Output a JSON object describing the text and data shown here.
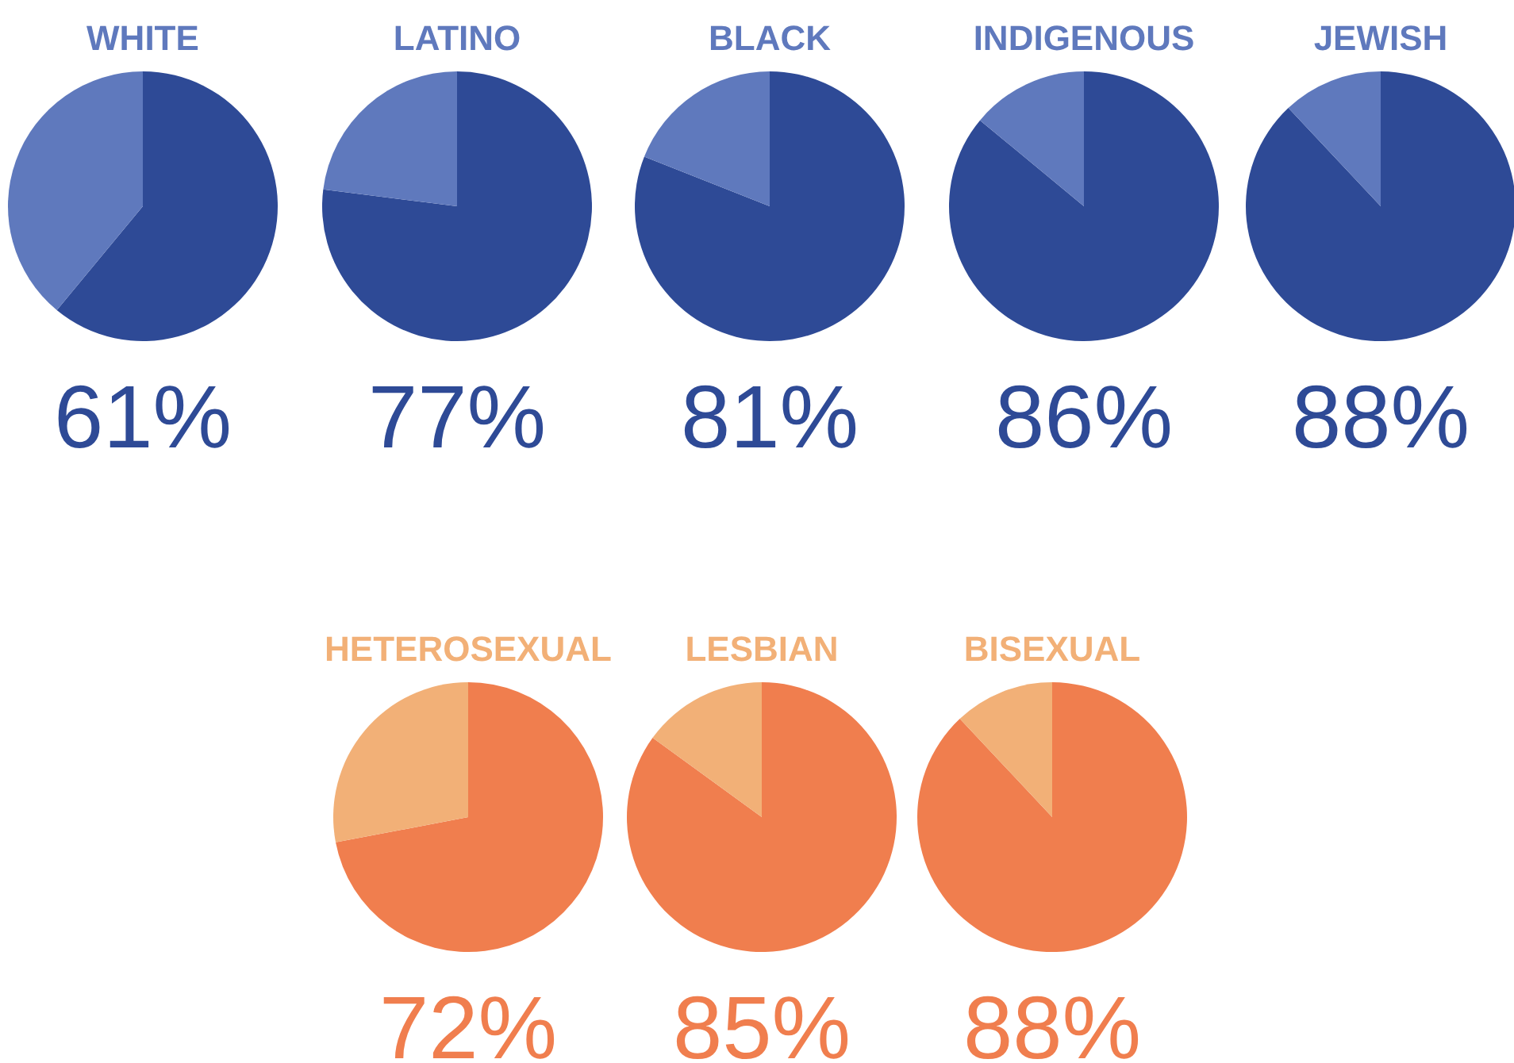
{
  "chart_data": [
    {
      "type": "pie",
      "title": "WHITE",
      "categories": [
        null,
        null
      ],
      "values": [
        61,
        39
      ],
      "colors": [
        "#2e4a96",
        "#5f79bd"
      ],
      "value_labels": [
        "61%",
        null
      ],
      "legend": false
    },
    {
      "type": "pie",
      "title": "LATINO",
      "categories": [
        null,
        null
      ],
      "values": [
        77,
        23
      ],
      "colors": [
        "#2e4a96",
        "#5f79bd"
      ],
      "value_labels": [
        "77%",
        null
      ],
      "legend": false
    },
    {
      "type": "pie",
      "title": "BLACK",
      "categories": [
        null,
        null
      ],
      "values": [
        81,
        19
      ],
      "colors": [
        "#2e4a96",
        "#5f79bd"
      ],
      "value_labels": [
        "81%",
        null
      ],
      "legend": false
    },
    {
      "type": "pie",
      "title": "INDIGENOUS",
      "categories": [
        null,
        null
      ],
      "values": [
        86,
        14
      ],
      "colors": [
        "#2e4a96",
        "#5f79bd"
      ],
      "value_labels": [
        "86%",
        null
      ],
      "legend": false
    },
    {
      "type": "pie",
      "title": "JEWISH",
      "categories": [
        null,
        null
      ],
      "values": [
        88,
        12
      ],
      "colors": [
        "#2e4a96",
        "#5f79bd"
      ],
      "value_labels": [
        "88%",
        null
      ],
      "legend": false
    },
    {
      "type": "pie",
      "title": "HETEROSEXUAL",
      "categories": [
        null,
        null
      ],
      "values": [
        72,
        28
      ],
      "colors": [
        "#f07e4e",
        "#f2b077"
      ],
      "value_labels": [
        "72%",
        null
      ],
      "legend": false
    },
    {
      "type": "pie",
      "title": "LESBIAN",
      "categories": [
        null,
        null
      ],
      "values": [
        85,
        15
      ],
      "colors": [
        "#f07e4e",
        "#f2b077"
      ],
      "value_labels": [
        "85%",
        null
      ],
      "legend": false
    },
    {
      "type": "pie",
      "title": "BISEXUAL",
      "categories": [
        null,
        null
      ],
      "values": [
        88,
        12
      ],
      "colors": [
        "#f07e4e",
        "#f2b077"
      ],
      "value_labels": [
        "88%",
        null
      ],
      "legend": false
    }
  ]
}
